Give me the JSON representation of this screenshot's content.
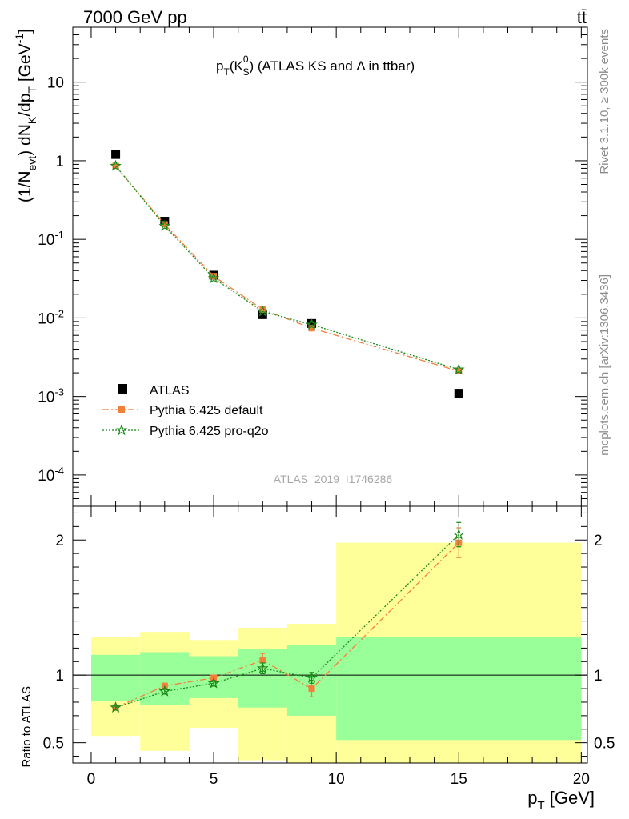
{
  "header": {
    "left": "7000 GeV pp",
    "right": "tt̄"
  },
  "side_text": {
    "rivet": "Rivet 3.1.10, ≥ 300k events",
    "mcplots": "mcplots.cern.ch [arXiv:1306.3436]"
  },
  "chart_data": [
    {
      "type": "scatter",
      "title": "pT(K0S) (ATLAS KS and Λ in ttbar)",
      "title_parts": {
        "p": "p",
        "T": "T",
        "open": "(K",
        "sup": "0",
        "sub": "S",
        "rest": ") (ATLAS KS and ",
        "lambda": "Λ",
        "end": " in ttbar)"
      },
      "watermark": "ATLAS_2019_I1746286",
      "ylabel": "(1/Nevt) dNK/dpT [GeV-1]",
      "ylabel_parts": {
        "a": "(1/N",
        "evt": "evt",
        "b": ") dN",
        "K": "K",
        "c": "/dp",
        "T": "T",
        "d": " [GeV",
        "e": "-1",
        "f": "]"
      },
      "yscale": "log",
      "ylim": [
        4e-05,
        50
      ],
      "xlim": [
        -0.75,
        20.25
      ],
      "y_tick_labels": [
        {
          "value": 10,
          "base": "10",
          "exp": ""
        },
        {
          "value": 1,
          "base": "1",
          "exp": ""
        },
        {
          "value": 0.1,
          "base": "10",
          "exp": "-1"
        },
        {
          "value": 0.01,
          "base": "10",
          "exp": "-2"
        },
        {
          "value": 0.001,
          "base": "10",
          "exp": "-3"
        },
        {
          "value": 0.0001,
          "base": "10",
          "exp": "-4"
        }
      ],
      "legend_position": "lower-left",
      "series": [
        {
          "name": "ATLAS",
          "color": "#000000",
          "marker": "square",
          "x": [
            1,
            3,
            5,
            7,
            9,
            15
          ],
          "y": [
            1.2,
            0.17,
            0.035,
            0.011,
            0.0085,
            0.0011
          ]
        },
        {
          "name": "Pythia 6.425 default",
          "color": "#f47f3a",
          "marker": "square",
          "line": "dash-dot",
          "x": [
            1,
            3,
            5,
            7,
            9,
            15
          ],
          "y": [
            0.86,
            0.155,
            0.034,
            0.0128,
            0.0074,
            0.0021
          ]
        },
        {
          "name": "Pythia 6.425 pro-q2o",
          "color": "#1a8a1a",
          "marker": "star",
          "line": "dotted",
          "x": [
            1,
            3,
            5,
            7,
            9,
            15
          ],
          "y": [
            0.86,
            0.148,
            0.032,
            0.0121,
            0.0082,
            0.0022
          ]
        }
      ]
    },
    {
      "type": "scatter",
      "ylabel": "Ratio to ATLAS",
      "xlabel": "pT [GeV]",
      "xlabel_parts": {
        "p": "p",
        "T": "T",
        "rest": " [GeV]"
      },
      "xlim": [
        -0.75,
        20.25
      ],
      "ylim": [
        0.35,
        2.25
      ],
      "x_ticks": [
        0,
        5,
        10,
        15,
        20
      ],
      "x_tick_labels": [
        "0",
        "5",
        "10",
        "15",
        "20"
      ],
      "y_ticks": [
        0.5,
        1,
        2
      ],
      "y_tick_labels": [
        "0.5",
        "1",
        "2"
      ],
      "reference_line": 1,
      "bands": [
        {
          "x0": 0,
          "x1": 2,
          "inner": [
            0.81,
            1.15
          ],
          "outer": [
            0.55,
            1.28
          ]
        },
        {
          "x0": 2,
          "x1": 4,
          "inner": [
            0.78,
            1.17
          ],
          "outer": [
            0.44,
            1.32
          ]
        },
        {
          "x0": 4,
          "x1": 6,
          "inner": [
            0.83,
            1.14
          ],
          "outer": [
            0.61,
            1.26
          ]
        },
        {
          "x0": 6,
          "x1": 8,
          "inner": [
            0.76,
            1.19
          ],
          "outer": [
            0.37,
            1.35
          ]
        },
        {
          "x0": 8,
          "x1": 10,
          "inner": [
            0.7,
            1.22
          ],
          "outer": [
            0.35,
            1.38
          ]
        },
        {
          "x0": 10,
          "x1": 20,
          "inner": [
            0.52,
            1.28
          ],
          "outer": [
            0.35,
            1.98
          ]
        }
      ],
      "series": [
        {
          "name": "Pythia 6.425 default",
          "color": "#f47f3a",
          "marker": "square",
          "line": "dash-dot",
          "x": [
            1,
            3,
            5,
            7,
            9,
            15
          ],
          "y": [
            0.76,
            0.92,
            0.98,
            1.11,
            0.9,
            1.98
          ],
          "err": [
            0.01,
            0.02,
            0.02,
            0.05,
            0.06,
            0.11
          ]
        },
        {
          "name": "Pythia 6.425 pro-q2o",
          "color": "#1a8a1a",
          "marker": "star",
          "line": "dotted",
          "x": [
            1,
            3,
            5,
            7,
            9,
            15
          ],
          "y": [
            0.76,
            0.88,
            0.94,
            1.05,
            0.98,
            2.04
          ],
          "err": [
            0.01,
            0.02,
            0.02,
            0.04,
            0.04,
            0.09
          ]
        }
      ]
    }
  ]
}
